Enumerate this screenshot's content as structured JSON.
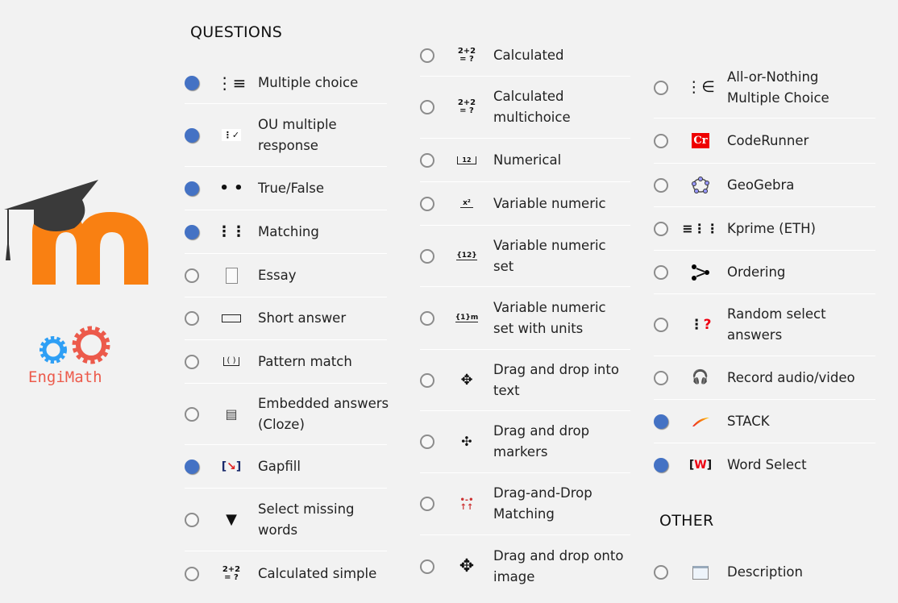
{
  "logos": {
    "engimath_text": "EngiMath",
    "moodle_color": "#f98012",
    "engimath_blue": "#2e9ff5",
    "engimath_red": "#ec5a4b"
  },
  "headings": {
    "questions": "QUESTIONS",
    "other": "OTHER"
  },
  "colors": {
    "selected": "#4472c4",
    "unselected_ring": "#8c8c8c"
  },
  "columns": [
    [
      {
        "label": "Multiple choice",
        "icon": "list-icon",
        "selected": true
      },
      {
        "label": "OU multiple response",
        "icon": "checklist-icon",
        "selected": true
      },
      {
        "label": "True/False",
        "icon": "two-dots-icon",
        "selected": true
      },
      {
        "label": "Matching",
        "icon": "matching-icon",
        "selected": true
      },
      {
        "label": "Essay",
        "icon": "document-icon",
        "selected": false
      },
      {
        "label": "Short answer",
        "icon": "text-box-icon",
        "selected": false
      },
      {
        "label": "Pattern match",
        "icon": "pattern-box-icon",
        "selected": false
      },
      {
        "label": "Embedded answers (Cloze)",
        "icon": "cloze-icon",
        "selected": false
      },
      {
        "label": "Gapfill",
        "icon": "gapfill-icon",
        "selected": true
      },
      {
        "label": "Select missing words",
        "icon": "triangle-down-icon",
        "selected": false
      },
      {
        "label": "Calculated simple",
        "icon": "calculated-icon",
        "selected": false
      }
    ],
    [
      {
        "label": "Calculated",
        "icon": "calculated-icon",
        "selected": false
      },
      {
        "label": "Calculated multichoice",
        "icon": "calculated-icon",
        "selected": false
      },
      {
        "label": "Numerical",
        "icon": "numerical-icon",
        "selected": false
      },
      {
        "label": "Variable numeric",
        "icon": "variable-numeric-icon",
        "selected": false
      },
      {
        "label": "Variable numeric set",
        "icon": "variable-set-icon",
        "selected": false
      },
      {
        "label": "Variable numeric set with units",
        "icon": "variable-units-icon",
        "selected": false
      },
      {
        "label": "Drag and drop into text",
        "icon": "move-arrows-icon",
        "selected": false
      },
      {
        "label": "Drag and drop markers",
        "icon": "markers-icon",
        "selected": false
      },
      {
        "label": "Drag-and-Drop Matching",
        "icon": "dd-matching-icon",
        "selected": false
      },
      {
        "label": "Drag and drop onto image",
        "icon": "move-arrows-bold-icon",
        "selected": false
      }
    ],
    [
      {
        "label": "All-or-Nothing Multiple Choice",
        "icon": "all-or-nothing-icon",
        "selected": false
      },
      {
        "label": "CodeRunner",
        "icon": "coderunner-icon",
        "selected": false
      },
      {
        "label": "GeoGebra",
        "icon": "geogebra-icon",
        "selected": false
      },
      {
        "label": "Kprime (ETH)",
        "icon": "kprime-icon",
        "selected": false
      },
      {
        "label": "Ordering",
        "icon": "ordering-icon",
        "selected": false
      },
      {
        "label": "Random select answers",
        "icon": "random-select-icon",
        "selected": false
      },
      {
        "label": "Record audio/video",
        "icon": "headset-icon",
        "selected": false
      },
      {
        "label": "STACK",
        "icon": "stack-icon",
        "selected": true
      },
      {
        "label": "Word Select",
        "icon": "word-select-icon",
        "selected": true
      }
    ]
  ],
  "other": [
    {
      "label": "Description",
      "icon": "description-icon",
      "selected": false
    }
  ]
}
